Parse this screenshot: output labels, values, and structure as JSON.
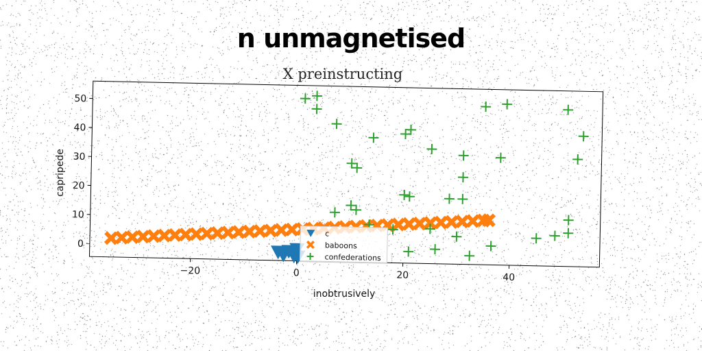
{
  "figure": {
    "suptitle": "n unmagnetised"
  },
  "chart_data": {
    "type": "scatter",
    "title": "X preinstructing",
    "xlabel": "inobtrusively",
    "ylabel": "capripede",
    "xlim": [
      -39,
      57
    ],
    "ylim": [
      -4.5,
      56
    ],
    "xticks": [
      -20,
      0,
      20,
      40
    ],
    "yticks": [
      0,
      10,
      20,
      30,
      40,
      50
    ],
    "grid": false,
    "legend_position": "lower-center",
    "series": [
      {
        "name": "c",
        "marker": "triangle-down",
        "color": "#1f77b4",
        "points": [
          [
            -3.5,
            -1.5
          ],
          [
            -2.5,
            -2.5
          ],
          [
            -1.5,
            -1.2
          ],
          [
            -0.5,
            -2.8
          ],
          [
            0,
            -0.5
          ],
          [
            0.2,
            -3
          ]
        ]
      },
      {
        "name": "baboons",
        "marker": "x-filled",
        "color": "#ff7f0e",
        "points": [
          [
            -35,
            2
          ],
          [
            -33,
            2.25
          ],
          [
            -31,
            2.5
          ],
          [
            -29,
            2.75
          ],
          [
            -27,
            3
          ],
          [
            -25,
            3.25
          ],
          [
            -23,
            3.5
          ],
          [
            -21,
            3.75
          ],
          [
            -19,
            4
          ],
          [
            -17,
            4.25
          ],
          [
            -15,
            4.5
          ],
          [
            -13,
            4.75
          ],
          [
            -11,
            5
          ],
          [
            -9,
            5.25
          ],
          [
            -7,
            5.5
          ],
          [
            -5,
            5.75
          ],
          [
            -3,
            6
          ],
          [
            -1,
            6.25
          ],
          [
            1,
            6.5
          ],
          [
            3,
            6.75
          ],
          [
            5,
            7
          ],
          [
            7,
            7.25
          ],
          [
            9,
            7.5
          ],
          [
            11,
            7.75
          ],
          [
            13,
            8
          ],
          [
            15,
            8.25
          ],
          [
            17,
            8.5
          ],
          [
            19,
            8.75
          ],
          [
            21,
            9
          ],
          [
            23,
            9.25
          ],
          [
            25,
            9.5
          ],
          [
            27,
            9.75
          ],
          [
            29,
            10
          ],
          [
            31,
            10.25
          ],
          [
            33,
            10.5
          ],
          [
            35,
            10.75
          ],
          [
            36,
            10.9
          ]
        ]
      },
      {
        "name": "confederations",
        "marker": "plus",
        "color": "#2ca02c",
        "points": [
          [
            1,
            51.5
          ],
          [
            3.2,
            52.5
          ],
          [
            3.2,
            48
          ],
          [
            7,
            43
          ],
          [
            14,
            38.5
          ],
          [
            20,
            40
          ],
          [
            21,
            41.5
          ],
          [
            25,
            35
          ],
          [
            10,
            29.5
          ],
          [
            11,
            28
          ],
          [
            31,
            33
          ],
          [
            31,
            25.5
          ],
          [
            35,
            50
          ],
          [
            39,
            51
          ],
          [
            38,
            32.5
          ],
          [
            50.5,
            49.5
          ],
          [
            53.5,
            40.5
          ],
          [
            52.5,
            32.5
          ],
          [
            7,
            12.5
          ],
          [
            10,
            15
          ],
          [
            11,
            13.5
          ],
          [
            13.5,
            8.5
          ],
          [
            18,
            7
          ],
          [
            20,
            19
          ],
          [
            21,
            18.5
          ],
          [
            28.5,
            18
          ],
          [
            31,
            18
          ],
          [
            25,
            7.5
          ],
          [
            30,
            5
          ],
          [
            26,
            0.5
          ],
          [
            21,
            -0.5
          ],
          [
            32.5,
            -1.5
          ],
          [
            36.5,
            2
          ],
          [
            45,
            5
          ],
          [
            48.5,
            6
          ],
          [
            51,
            7
          ],
          [
            51,
            11.5
          ]
        ]
      }
    ]
  }
}
